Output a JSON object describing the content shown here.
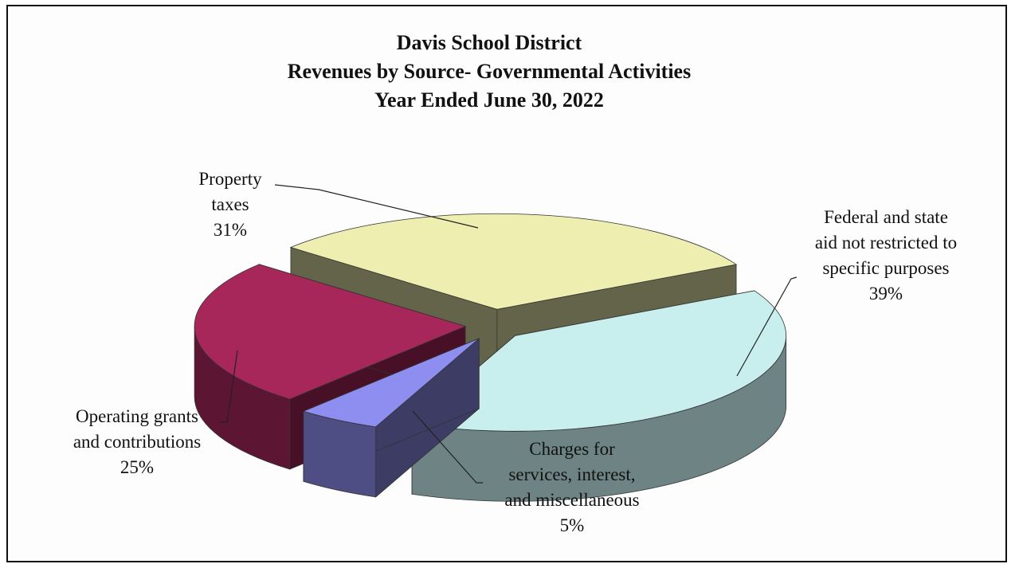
{
  "chart_data": {
    "type": "pie",
    "title_lines": [
      "Davis School District",
      "Revenues by Source- Governmental Activities",
      "Year Ended June 30, 2022"
    ],
    "slices": [
      {
        "label_lines": [
          "Federal and state",
          "aid not restricted to",
          "specific purposes"
        ],
        "percent_label": "39%",
        "value": 39,
        "color": "#c8eeee"
      },
      {
        "label_lines": [
          "Charges for",
          "services, interest,",
          "and miscellaneous"
        ],
        "percent_label": "5%",
        "value": 5,
        "color": "#8e8ef0"
      },
      {
        "label_lines": [
          "Operating grants",
          "and contributions"
        ],
        "percent_label": "25%",
        "value": 25,
        "color": "#a8275a"
      },
      {
        "label_lines": [
          "Property",
          "taxes"
        ],
        "percent_label": "31%",
        "value": 31,
        "color": "#eeeeb0"
      }
    ],
    "style": "3d-exploded",
    "legend": "none"
  }
}
